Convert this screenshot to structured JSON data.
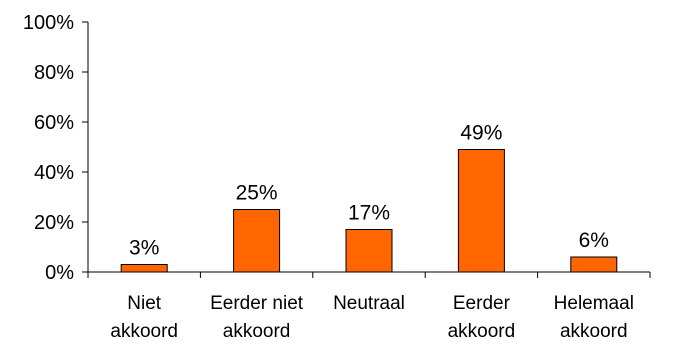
{
  "chart_data": {
    "type": "bar",
    "categories": [
      [
        "Niet",
        "akkoord"
      ],
      [
        "Eerder niet",
        "akkoord"
      ],
      [
        "Neutraal"
      ],
      [
        "Eerder",
        "akkoord"
      ],
      [
        "Helemaal",
        "akkoord"
      ]
    ],
    "values": [
      3,
      25,
      17,
      49,
      6
    ],
    "data_labels": [
      "3%",
      "25%",
      "17%",
      "49%",
      "6%"
    ],
    "ylim": [
      0,
      100
    ],
    "yticks": [
      0,
      20,
      40,
      60,
      80,
      100
    ],
    "ytick_labels": [
      "0%",
      "20%",
      "40%",
      "60%",
      "80%",
      "100%"
    ],
    "bar_color": "#FF6600",
    "bar_outline": "#000000",
    "grid": false,
    "legend": "none"
  }
}
